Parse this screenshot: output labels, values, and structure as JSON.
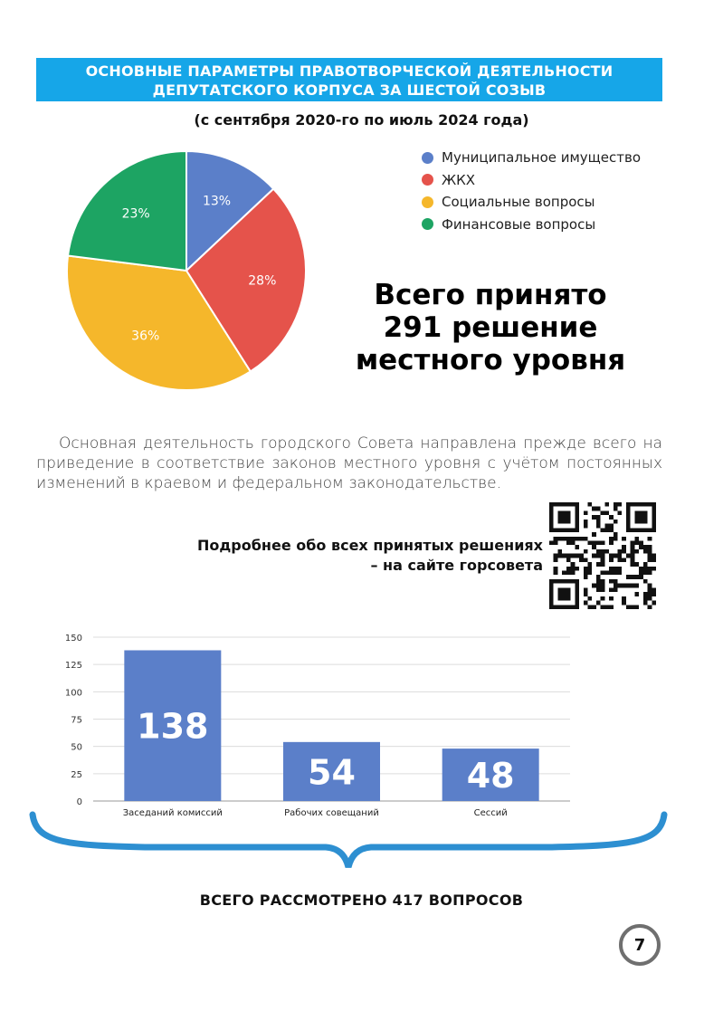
{
  "banner": {
    "line1": "ОСНОВНЫЕ ПАРАМЕТРЫ ПРАВОТВОРЧЕСКОЙ ДЕЯТЕЛЬНОСТИ",
    "line2": "ДЕПУТАТСКОГО КОРПУСА ЗА ШЕСТОЙ СОЗЫВ"
  },
  "subtitle": "(с сентября 2020-го по июль 2024 года)",
  "total": {
    "line1": "Всего принято",
    "line2": "291 решение",
    "line3": "местного уровня"
  },
  "paragraph": "Основная деятельность городского Совета направлена прежде всего на приведение в соответствие законов местного уровня с учётом постоянных изменений в краевом и федеральном законодательстве.",
  "qr_caption": {
    "line1": "Подробнее обо всех принятых решениях",
    "line2": "– на сайте горсовета"
  },
  "footer_total": "ВСЕГО РАССМОТРЕНО 417 ВОПРОСОВ",
  "page_number": "7",
  "colors": {
    "banner": "#16a6e8",
    "blue": "#5b7fc9",
    "red": "#e5534b",
    "yellow": "#f5b72b",
    "green": "#1da463",
    "bar": "#5b7fc9",
    "brace": "#2d8fd1"
  },
  "chart_data": [
    {
      "type": "pie",
      "labels": [
        "Муниципальное имущество",
        "ЖКХ",
        "Социальные вопросы",
        "Финансовые вопросы"
      ],
      "values": [
        13,
        28,
        36,
        23
      ],
      "value_labels": [
        "13%",
        "28%",
        "36%",
        "23%"
      ],
      "colors": [
        "#5b7fc9",
        "#e5534b",
        "#f5b72b",
        "#1da463"
      ],
      "legend": "top-right"
    },
    {
      "type": "bar",
      "categories": [
        "Заседаний комиссий",
        "Рабочих совещаний",
        "Сессий"
      ],
      "values": [
        138,
        54,
        48
      ],
      "data_labels": [
        "138",
        "54",
        "48"
      ],
      "ylim": [
        0,
        150
      ],
      "yticks": [
        0,
        25,
        50,
        75,
        100,
        125,
        150
      ],
      "grid": true
    }
  ]
}
